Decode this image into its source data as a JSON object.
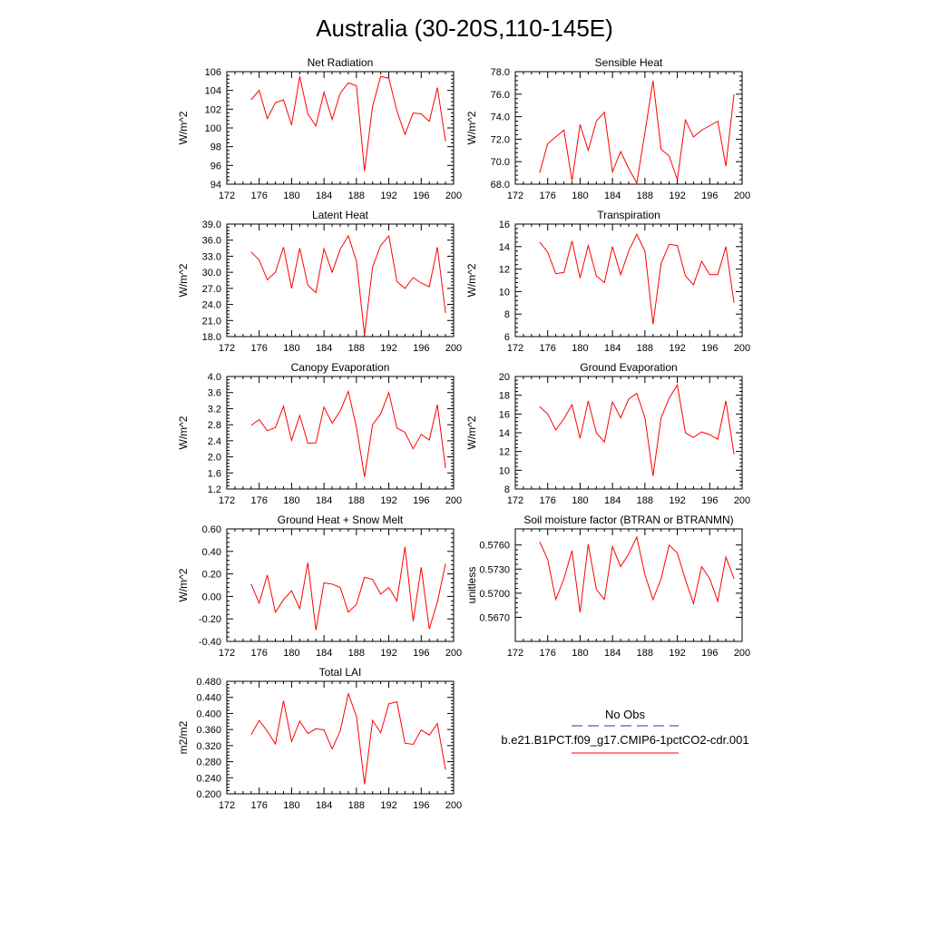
{
  "figure_title": "Australia (30-20S,110-145E)",
  "series_color": "#ff0000",
  "obs_color": "#3333aa",
  "legend": {
    "obs_label": "No Obs",
    "model_label": "b.e21.B1PCT.f09_g17.CMIP6-1pctCO2-cdr.001"
  },
  "chart_data": [
    {
      "type": "line",
      "title": "Net Radiation",
      "ylabel": "W/m^2",
      "xlabel": "",
      "xlim": [
        172,
        200
      ],
      "ylim": [
        94,
        106
      ],
      "xticks": [
        172,
        176,
        180,
        184,
        188,
        192,
        196,
        200
      ],
      "yticks": [
        94,
        96,
        98,
        100,
        102,
        104,
        106
      ],
      "ytick_labels": [
        "94",
        "96",
        "98",
        "100",
        "102",
        "104",
        "106"
      ],
      "x": [
        175,
        176,
        177,
        178,
        179,
        180,
        181,
        182,
        183,
        184,
        185,
        186,
        187,
        188,
        189,
        190,
        191,
        192,
        193,
        194,
        195,
        196,
        197,
        198,
        199
      ],
      "values": [
        103.0,
        104.0,
        101.0,
        102.7,
        103.0,
        100.3,
        105.5,
        101.5,
        100.2,
        103.8,
        100.9,
        103.7,
        104.8,
        104.5,
        95.4,
        102.3,
        105.5,
        105.3,
        101.8,
        99.3,
        101.6,
        101.5,
        100.7,
        104.3,
        98.6
      ]
    },
    {
      "type": "line",
      "title": "Sensible Heat",
      "ylabel": "W/m^2",
      "xlabel": "",
      "xlim": [
        172,
        200
      ],
      "ylim": [
        68,
        78
      ],
      "xticks": [
        172,
        176,
        180,
        184,
        188,
        192,
        196,
        200
      ],
      "yticks": [
        68,
        70,
        72,
        74,
        76,
        78
      ],
      "ytick_labels": [
        "68.0",
        "70.0",
        "72.0",
        "74.0",
        "76.0",
        "78.0"
      ],
      "x": [
        175,
        176,
        177,
        178,
        179,
        180,
        181,
        182,
        183,
        184,
        185,
        186,
        187,
        188,
        189,
        190,
        191,
        192,
        193,
        194,
        195,
        196,
        197,
        198,
        199
      ],
      "values": [
        69.0,
        71.6,
        72.2,
        72.8,
        68.3,
        73.3,
        71.0,
        73.6,
        74.4,
        69.1,
        70.9,
        69.4,
        68.1,
        72.6,
        77.2,
        71.1,
        70.5,
        68.4,
        73.7,
        72.2,
        72.8,
        73.2,
        73.6,
        69.6,
        76.0
      ]
    },
    {
      "type": "line",
      "title": "Latent Heat",
      "ylabel": "W/m^2",
      "xlabel": "",
      "xlim": [
        172,
        200
      ],
      "ylim": [
        18,
        39
      ],
      "xticks": [
        172,
        176,
        180,
        184,
        188,
        192,
        196,
        200
      ],
      "yticks": [
        18,
        21,
        24,
        27,
        30,
        33,
        36,
        39
      ],
      "ytick_labels": [
        "18.0",
        "21.0",
        "24.0",
        "27.0",
        "30.0",
        "33.0",
        "36.0",
        "39.0"
      ],
      "x": [
        175,
        176,
        177,
        178,
        179,
        180,
        181,
        182,
        183,
        184,
        185,
        186,
        187,
        188,
        189,
        190,
        191,
        192,
        193,
        194,
        195,
        196,
        197,
        198,
        199
      ],
      "values": [
        33.8,
        32.3,
        28.6,
        30.0,
        34.7,
        27.0,
        34.5,
        27.6,
        26.2,
        34.4,
        30.0,
        34.3,
        36.8,
        32.1,
        18.3,
        31.0,
        35.0,
        36.8,
        28.3,
        27.0,
        29.0,
        28.0,
        27.3,
        34.7,
        22.4
      ]
    },
    {
      "type": "line",
      "title": "Transpiration",
      "ylabel": "W/m^2",
      "xlabel": "",
      "xlim": [
        172,
        200
      ],
      "ylim": [
        6,
        16
      ],
      "xticks": [
        172,
        176,
        180,
        184,
        188,
        192,
        196,
        200
      ],
      "yticks": [
        6,
        8,
        10,
        12,
        14,
        16
      ],
      "ytick_labels": [
        "6",
        "8",
        "10",
        "12",
        "14",
        "16"
      ],
      "x": [
        175,
        176,
        177,
        178,
        179,
        180,
        181,
        182,
        183,
        184,
        185,
        186,
        187,
        188,
        189,
        190,
        191,
        192,
        193,
        194,
        195,
        196,
        197,
        198,
        199
      ],
      "values": [
        14.4,
        13.5,
        11.6,
        11.7,
        14.5,
        11.2,
        14.1,
        11.4,
        10.8,
        14.0,
        11.5,
        13.6,
        15.1,
        13.6,
        7.1,
        12.5,
        14.2,
        14.1,
        11.4,
        10.6,
        12.7,
        11.5,
        11.5,
        14.0,
        9.0
      ]
    },
    {
      "type": "line",
      "title": "Canopy Evaporation",
      "ylabel": "W/m^2",
      "xlabel": "",
      "xlim": [
        172,
        200
      ],
      "ylim": [
        1.2,
        4.0
      ],
      "xticks": [
        172,
        176,
        180,
        184,
        188,
        192,
        196,
        200
      ],
      "yticks": [
        1.2,
        1.6,
        2.0,
        2.4,
        2.8,
        3.2,
        3.6,
        4.0
      ],
      "ytick_labels": [
        "1.2",
        "1.6",
        "2.0",
        "2.4",
        "2.8",
        "3.2",
        "3.6",
        "4.0"
      ],
      "x": [
        175,
        176,
        177,
        178,
        179,
        180,
        181,
        182,
        183,
        184,
        185,
        186,
        187,
        188,
        189,
        190,
        191,
        192,
        193,
        194,
        195,
        196,
        197,
        198,
        199
      ],
      "values": [
        2.78,
        2.93,
        2.65,
        2.73,
        3.26,
        2.41,
        3.03,
        2.34,
        2.35,
        3.24,
        2.84,
        3.14,
        3.63,
        2.74,
        1.5,
        2.8,
        3.07,
        3.6,
        2.72,
        2.61,
        2.2,
        2.56,
        2.42,
        3.3,
        1.72
      ]
    },
    {
      "type": "line",
      "title": "Ground Evaporation",
      "ylabel": "W/m^2",
      "xlabel": "",
      "xlim": [
        172,
        200
      ],
      "ylim": [
        8,
        20
      ],
      "xticks": [
        172,
        176,
        180,
        184,
        188,
        192,
        196,
        200
      ],
      "yticks": [
        8,
        10,
        12,
        14,
        16,
        18,
        20
      ],
      "ytick_labels": [
        "8",
        "10",
        "12",
        "14",
        "16",
        "18",
        "20"
      ],
      "x": [
        175,
        176,
        177,
        178,
        179,
        180,
        181,
        182,
        183,
        184,
        185,
        186,
        187,
        188,
        189,
        190,
        191,
        192,
        193,
        194,
        195,
        196,
        197,
        198,
        199
      ],
      "values": [
        16.8,
        16.0,
        14.3,
        15.5,
        17.0,
        13.4,
        17.4,
        14.0,
        13.0,
        17.3,
        15.6,
        17.6,
        18.2,
        15.6,
        9.4,
        15.6,
        17.7,
        19.1,
        14.0,
        13.5,
        14.1,
        13.8,
        13.3,
        17.4,
        11.7
      ]
    },
    {
      "type": "line",
      "title": "Ground Heat + Snow Melt",
      "ylabel": "W/m^2",
      "xlabel": "",
      "xlim": [
        172,
        200
      ],
      "ylim": [
        -0.4,
        0.6
      ],
      "xticks": [
        172,
        176,
        180,
        184,
        188,
        192,
        196,
        200
      ],
      "yticks": [
        -0.4,
        -0.2,
        0.0,
        0.2,
        0.4,
        0.6
      ],
      "ytick_labels": [
        "-0.40",
        "-0.20",
        "0.00",
        "0.20",
        "0.40",
        "0.60"
      ],
      "x": [
        175,
        176,
        177,
        178,
        179,
        180,
        181,
        182,
        183,
        184,
        185,
        186,
        187,
        188,
        189,
        190,
        191,
        192,
        193,
        194,
        195,
        196,
        197,
        198,
        199
      ],
      "values": [
        0.11,
        -0.06,
        0.19,
        -0.14,
        -0.03,
        0.05,
        -0.11,
        0.3,
        -0.3,
        0.12,
        0.11,
        0.08,
        -0.14,
        -0.07,
        0.17,
        0.15,
        0.02,
        0.08,
        -0.04,
        0.44,
        -0.22,
        0.26,
        -0.29,
        -0.05,
        0.29
      ]
    },
    {
      "type": "line",
      "title": "Soil moisture factor (BTRAN or BTRANMN)",
      "ylabel": "unitless",
      "xlabel": "",
      "xlim": [
        172,
        200
      ],
      "ylim": [
        0.564,
        0.578
      ],
      "xticks": [
        172,
        176,
        180,
        184,
        188,
        192,
        196,
        200
      ],
      "yticks": [
        0.567,
        0.57,
        0.573,
        0.576
      ],
      "ytick_labels": [
        "0.5670",
        "0.5700",
        "0.5730",
        "0.5760"
      ],
      "x": [
        175,
        176,
        177,
        178,
        179,
        180,
        181,
        182,
        183,
        184,
        185,
        186,
        187,
        188,
        189,
        190,
        191,
        192,
        193,
        194,
        195,
        196,
        197,
        198,
        199
      ],
      "values": [
        0.5764,
        0.5742,
        0.5692,
        0.5718,
        0.5753,
        0.5676,
        0.5761,
        0.5705,
        0.5692,
        0.5758,
        0.5733,
        0.5749,
        0.577,
        0.5723,
        0.5692,
        0.5718,
        0.576,
        0.575,
        0.5717,
        0.5687,
        0.5733,
        0.5718,
        0.569,
        0.5745,
        0.5718
      ]
    },
    {
      "type": "line",
      "title": "Total LAI",
      "ylabel": "m2/m2",
      "xlabel": "",
      "xlim": [
        172,
        200
      ],
      "ylim": [
        0.2,
        0.48
      ],
      "xticks": [
        172,
        176,
        180,
        184,
        188,
        192,
        196,
        200
      ],
      "yticks": [
        0.2,
        0.24,
        0.28,
        0.32,
        0.36,
        0.4,
        0.44,
        0.48
      ],
      "ytick_labels": [
        "0.200",
        "0.240",
        "0.280",
        "0.320",
        "0.360",
        "0.400",
        "0.440",
        "0.480"
      ],
      "x": [
        175,
        176,
        177,
        178,
        179,
        180,
        181,
        182,
        183,
        184,
        185,
        186,
        187,
        188,
        189,
        190,
        191,
        192,
        193,
        194,
        195,
        196,
        197,
        198,
        199
      ],
      "values": [
        0.347,
        0.383,
        0.356,
        0.324,
        0.432,
        0.33,
        0.381,
        0.35,
        0.362,
        0.359,
        0.312,
        0.356,
        0.449,
        0.393,
        0.224,
        0.383,
        0.352,
        0.424,
        0.429,
        0.326,
        0.323,
        0.359,
        0.346,
        0.375,
        0.26
      ]
    }
  ]
}
